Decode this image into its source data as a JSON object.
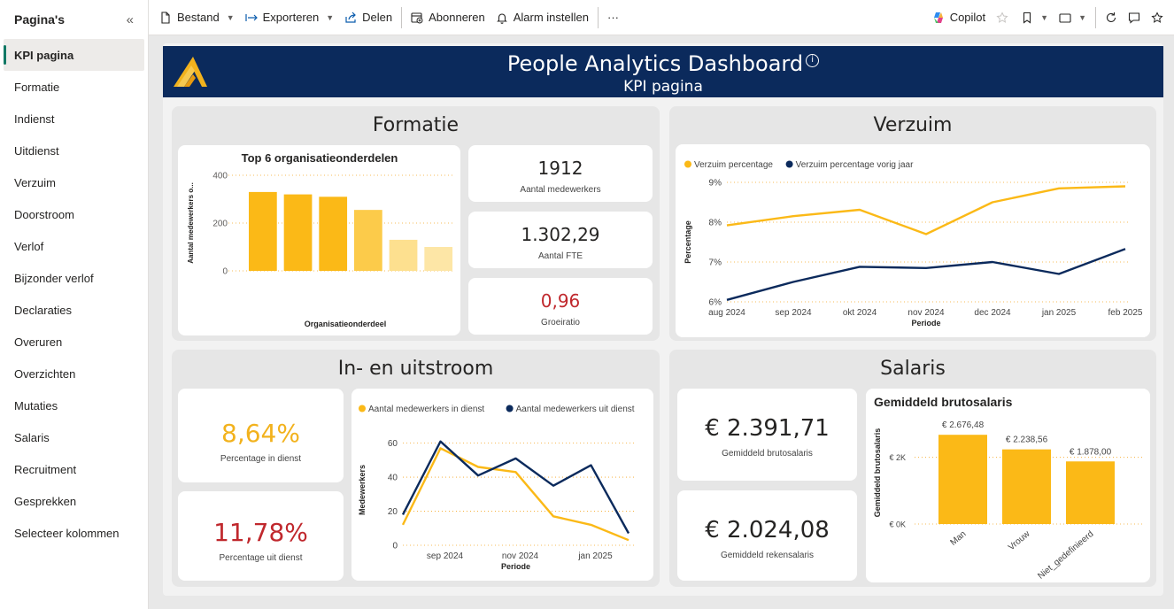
{
  "sidebar": {
    "title": "Pagina's",
    "items": [
      {
        "label": "KPI pagina",
        "active": true
      },
      {
        "label": "Formatie"
      },
      {
        "label": "Indienst"
      },
      {
        "label": "Uitdienst"
      },
      {
        "label": "Verzuim"
      },
      {
        "label": "Doorstroom"
      },
      {
        "label": "Verlof"
      },
      {
        "label": "Bijzonder verlof"
      },
      {
        "label": "Declaraties"
      },
      {
        "label": "Overuren"
      },
      {
        "label": "Overzichten"
      },
      {
        "label": "Mutaties"
      },
      {
        "label": "Salaris"
      },
      {
        "label": "Recruitment"
      },
      {
        "label": "Gesprekken"
      },
      {
        "label": "Selecteer kolommen"
      }
    ]
  },
  "toolbar": {
    "file": "Bestand",
    "export": "Exporteren",
    "share": "Delen",
    "subscribe": "Abonneren",
    "alert": "Alarm instellen",
    "more": "···",
    "copilot": "Copilot"
  },
  "report": {
    "title": "People Analytics Dashboard",
    "subtitle": "KPI pagina",
    "formatie": {
      "title": "Formatie",
      "kpis": [
        {
          "value": "1912",
          "label": "Aantal medewerkers"
        },
        {
          "value": "1.302,29",
          "label": "Aantal FTE"
        },
        {
          "value": "0,96",
          "label": "Groeiratio"
        }
      ]
    },
    "verzuim": {
      "title": "Verzuim"
    },
    "instroom": {
      "title": "In- en uitstroom",
      "kpis": [
        {
          "value": "8,64%",
          "label": "Percentage in dienst"
        },
        {
          "value": "11,78%",
          "label": "Percentage uit dienst"
        }
      ]
    },
    "salaris": {
      "title": "Salaris",
      "kpis": [
        {
          "value": "€ 2.391,71",
          "label": "Gemiddeld brutosalaris"
        },
        {
          "value": "€ 2.024,08",
          "label": "Gemiddeld rekensalaris"
        }
      ]
    }
  },
  "colors": {
    "navy": "#0b2a5c",
    "gold": "#fbb917",
    "red": "#c0282d",
    "active_marker": "#117865"
  },
  "chart_data": [
    {
      "id": "formatie",
      "type": "bar",
      "title": "Top 6 organisatieonderdelen",
      "xlabel": "Organisatieonderdeel",
      "ylabel": "Aantal medewerkers o...",
      "categories": [
        "",
        "",
        "",
        "",
        "",
        ""
      ],
      "values": [
        330,
        320,
        310,
        255,
        130,
        100
      ],
      "ylim": [
        0,
        400
      ],
      "yticks": [
        0,
        200,
        400
      ],
      "colors": [
        "#fbb917",
        "#fbb917",
        "#fbb917",
        "#fccb4a",
        "#fde08f",
        "#fde6a6"
      ]
    },
    {
      "id": "verzuim",
      "type": "line",
      "xlabel": "Periode",
      "ylabel": "Percentage",
      "x": [
        "aug 2024",
        "sep 2024",
        "okt 2024",
        "nov 2024",
        "dec 2024",
        "jan 2025",
        "feb 2025"
      ],
      "ylim": [
        6,
        9
      ],
      "yticks": [
        "6%",
        "7%",
        "8%",
        "9%"
      ],
      "legend": "top-left",
      "series": [
        {
          "name": "Verzuim percentage",
          "color": "#fbb917",
          "values": [
            7.92,
            8.15,
            8.31,
            7.7,
            8.5,
            8.85,
            8.9
          ]
        },
        {
          "name": "Verzuim percentage vorig jaar",
          "color": "#0b2a5c",
          "values": [
            6.05,
            6.5,
            6.88,
            6.85,
            7.0,
            6.7,
            7.33
          ]
        }
      ]
    },
    {
      "id": "instroom",
      "type": "line",
      "xlabel": "Periode",
      "ylabel": "Medewerkers",
      "xticks": [
        "sep 2024",
        "nov 2024",
        "jan 2025"
      ],
      "ylim": [
        0,
        65
      ],
      "yticks": [
        0,
        20,
        40,
        60
      ],
      "legend": "top-left",
      "series": [
        {
          "name": "Aantal medewerkers in dienst",
          "color": "#fbb917",
          "values": [
            12,
            57,
            46,
            43,
            17,
            12,
            3
          ]
        },
        {
          "name": "Aantal medewerkers uit dienst",
          "color": "#0b2a5c",
          "values": [
            18,
            61,
            41,
            51,
            35,
            47,
            7
          ]
        }
      ]
    },
    {
      "id": "salaris",
      "type": "bar",
      "title": "Gemiddeld brutosalaris",
      "ylabel": "Gemiddeld brutosalaris",
      "categories": [
        "Man",
        "Vrouw",
        "Niet_gedefinieerd"
      ],
      "values": [
        2676.48,
        2238.56,
        1878.0
      ],
      "data_labels": [
        "€ 2.676,48",
        "€ 2.238,56",
        "€ 1.878,00"
      ],
      "ylim": [
        0,
        3000
      ],
      "yticks": [
        "€ 0K",
        "€ 2K"
      ],
      "color": "#fbb917"
    }
  ]
}
